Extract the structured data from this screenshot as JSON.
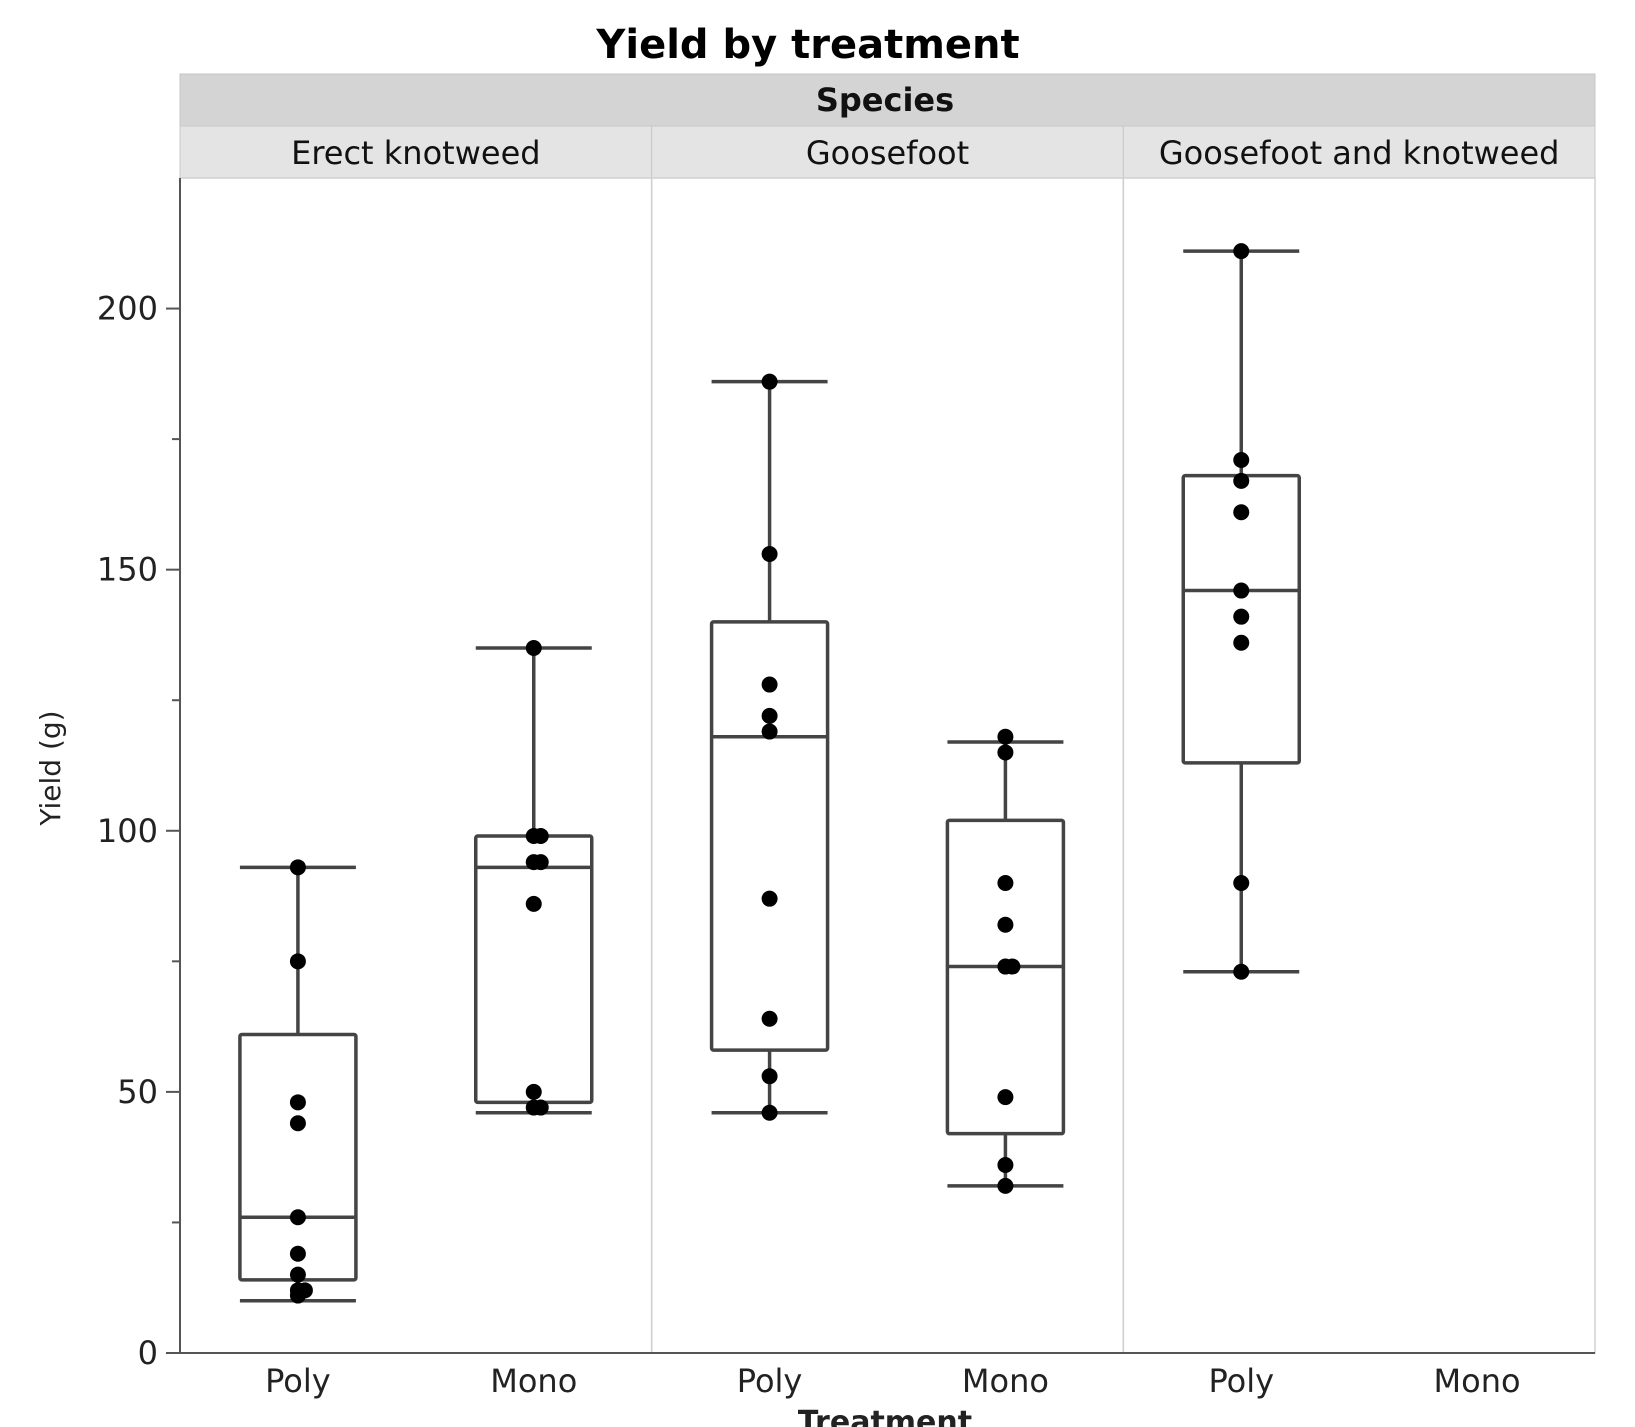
{
  "chart_data": {
    "type": "box",
    "title": "Yield by treatment",
    "facet_title": "Species",
    "ylabel": "Yield (g)",
    "xlabel": "Treatment",
    "ylim": [
      0,
      225
    ],
    "y_ticks": [
      0,
      50,
      100,
      150,
      200
    ],
    "x_categories": [
      "Poly",
      "Mono"
    ],
    "panels": [
      {
        "name": "Erect knotweed",
        "groups": [
          {
            "category": "Poly",
            "whisker_low": 10,
            "q1": 14,
            "median": 26,
            "q3": 61,
            "whisker_high": 93,
            "points": [
              11,
              12,
              12,
              15,
              19,
              26,
              44,
              48,
              75,
              93
            ]
          },
          {
            "category": "Mono",
            "whisker_low": 46,
            "q1": 48,
            "median": 93,
            "q3": 99,
            "whisker_high": 135,
            "points": [
              47,
              47,
              50,
              86,
              94,
              94,
              99,
              99,
              135
            ]
          }
        ]
      },
      {
        "name": "Goosefoot",
        "groups": [
          {
            "category": "Poly",
            "whisker_low": 46,
            "q1": 58,
            "median": 118,
            "q3": 140,
            "whisker_high": 186,
            "points": [
              46,
              53,
              64,
              87,
              119,
              122,
              128,
              153,
              186
            ]
          },
          {
            "category": "Mono",
            "whisker_low": 32,
            "q1": 42,
            "median": 74,
            "q3": 102,
            "whisker_high": 117,
            "points": [
              32,
              36,
              49,
              74,
              74,
              82,
              90,
              115,
              118
            ]
          }
        ]
      },
      {
        "name": "Goosefoot and knotweed",
        "groups": [
          {
            "category": "Poly",
            "whisker_low": 73,
            "q1": 113,
            "median": 146,
            "q3": 168,
            "whisker_high": 211,
            "points": [
              73,
              90,
              136,
              141,
              146,
              161,
              167,
              171,
              211
            ]
          },
          {
            "category": "Mono",
            "points": []
          }
        ]
      }
    ]
  }
}
